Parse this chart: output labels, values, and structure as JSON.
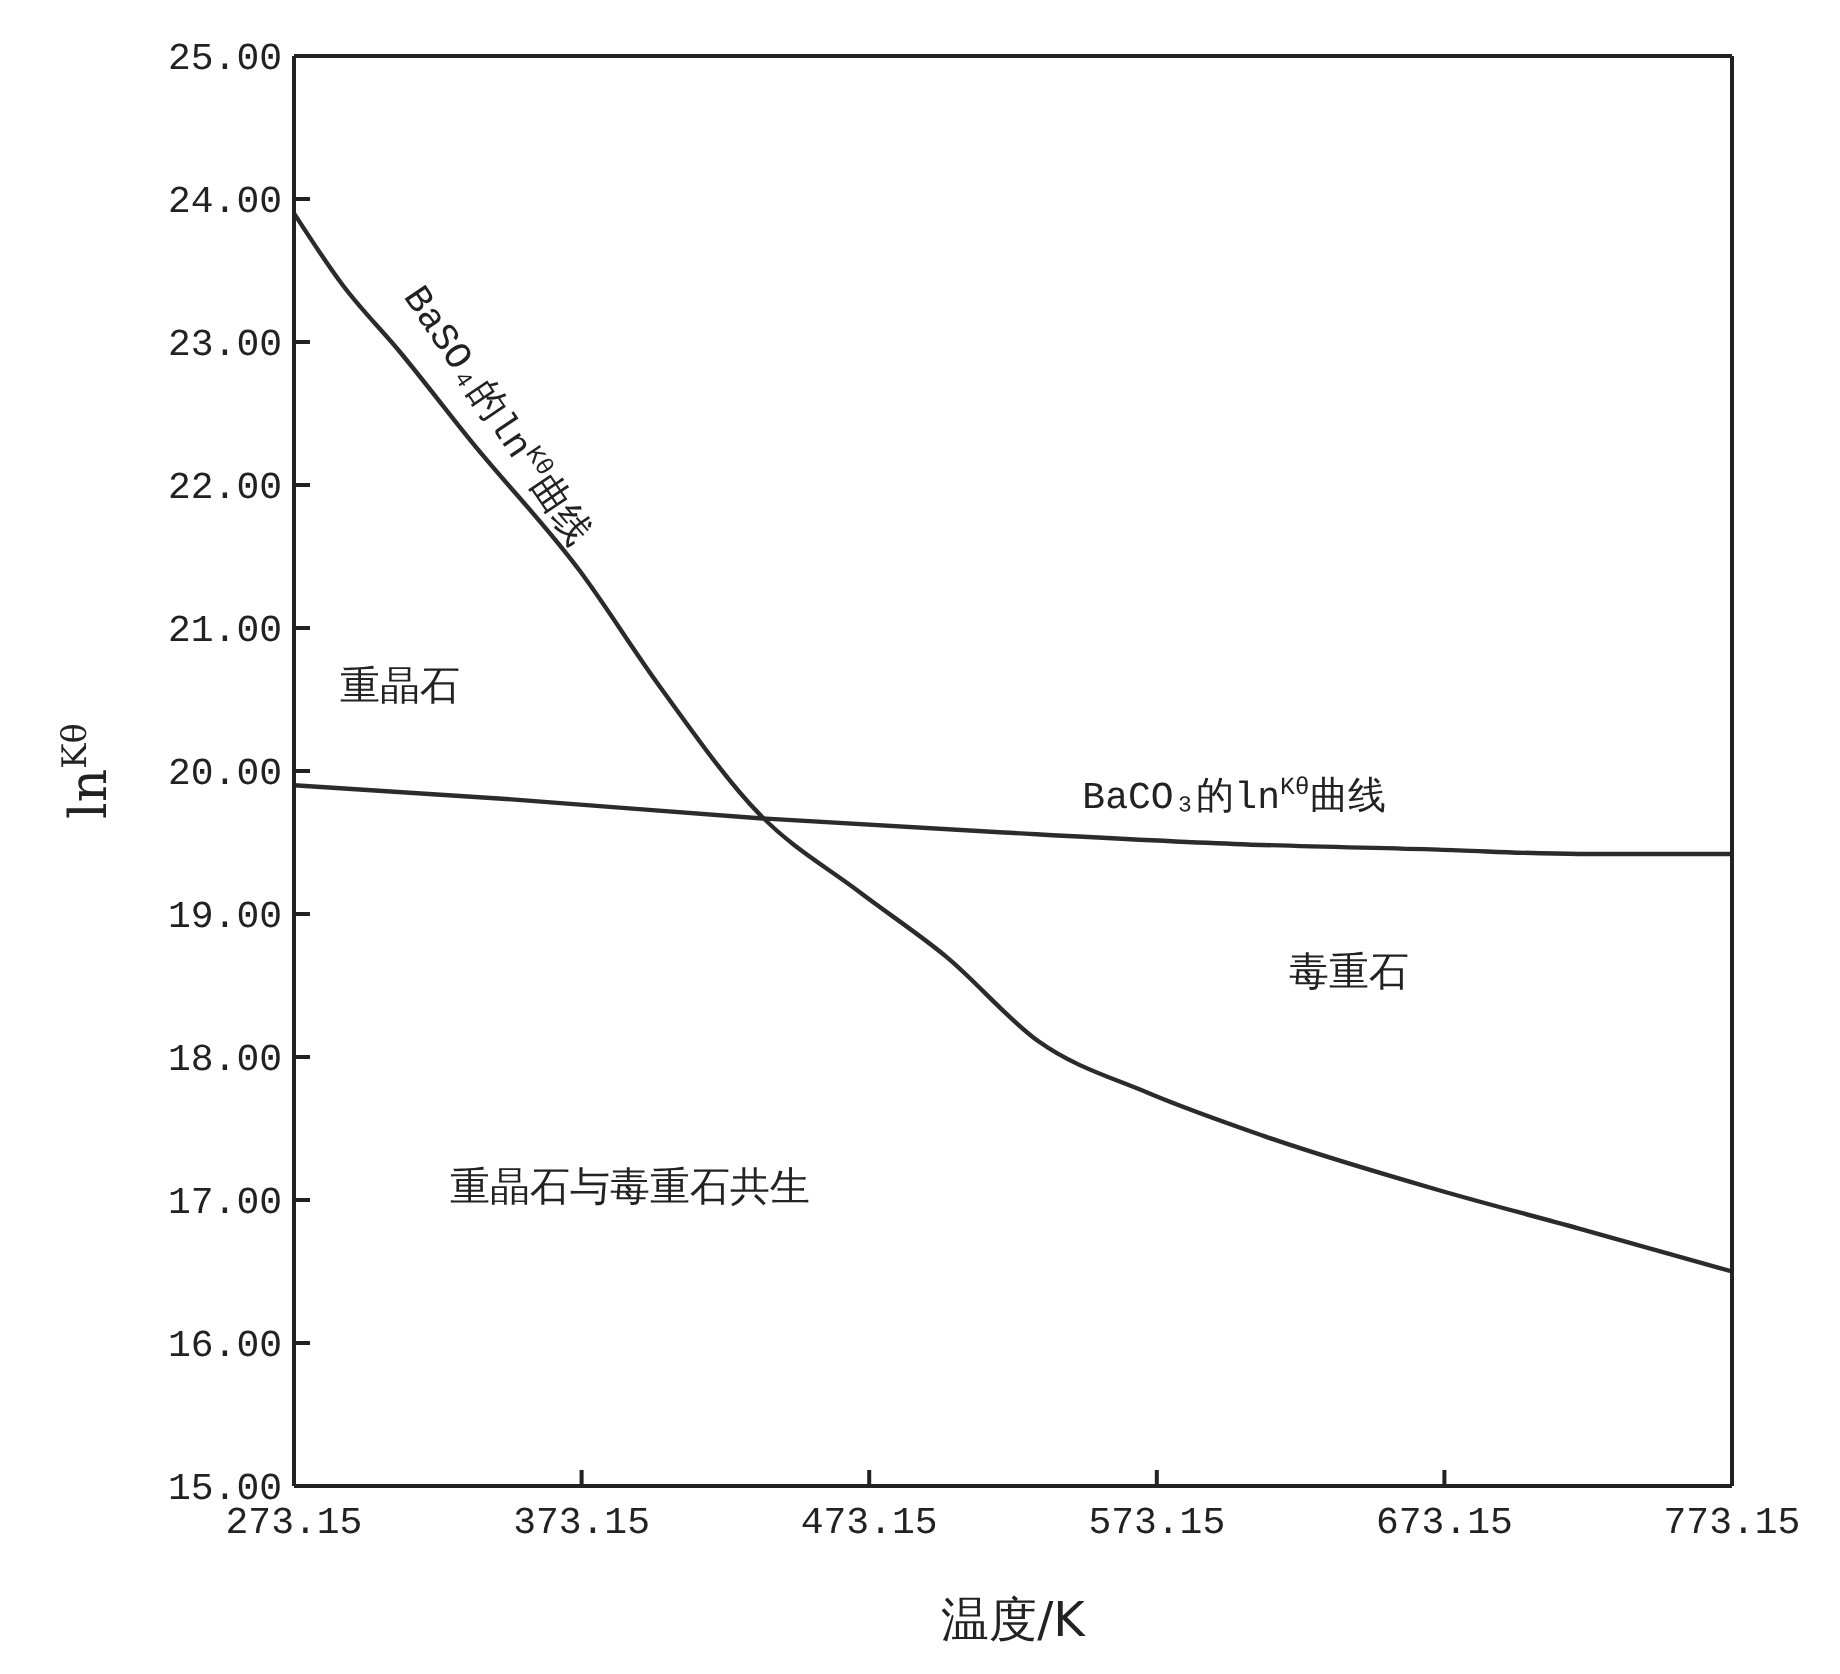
{
  "chart_data": {
    "type": "line",
    "xlabel": "温度/K",
    "ylabel": "ln$^{Kθ}$",
    "xlim": [
      273.15,
      773.15
    ],
    "xticks": [
      273.15,
      373.15,
      473.15,
      573.15,
      673.15,
      773.15
    ],
    "ylim": [
      15,
      25
    ],
    "yticks": [
      {
        "value": 15,
        "label": "15.00"
      },
      {
        "value": 16,
        "label": "16.00"
      },
      {
        "value": 17,
        "label": "17.00"
      },
      {
        "value": 18,
        "label": "18.00"
      },
      {
        "value": 19,
        "label": "19.00"
      },
      {
        "value": 20,
        "label": "20.00"
      },
      {
        "value": 21,
        "label": "21.00"
      },
      {
        "value": 22,
        "label": "22.00"
      },
      {
        "value": 23,
        "label": "23.00"
      },
      {
        "value": 24,
        "label": "24.00"
      },
      {
        "value": 25,
        "label": "25.00"
      }
    ],
    "marker": "none",
    "line_style": "solid",
    "series": [
      {
        "color": "#2b2b2b",
        "x": [
          273.15,
          290,
          310,
          335,
          372.5,
          400,
          434.9,
          470,
          500,
          532,
          570,
          610,
          671,
          720,
          773.15
        ],
        "values": [
          23.9,
          23.4,
          22.93,
          22.3,
          21.4,
          20.6,
          19.7,
          19.15,
          18.7,
          18.11,
          17.75,
          17.45,
          17.07,
          16.8,
          16.5
        ]
      },
      {
        "color": "#2b2b2b",
        "x": [
          273.15,
          350,
          434.9,
          520,
          600,
          671,
          720,
          773.15
        ],
        "values": [
          19.9,
          19.8,
          19.67,
          19.57,
          19.49,
          19.45,
          19.42,
          19.42
        ]
      }
    ],
    "annotations": [
      {
        "text": "BaSO₄的ln$^{Kθ}$曲线",
        "x": 335,
        "y": 22.3
      },
      {
        "text": "BaCO₃的ln$^{Kθ}$曲线",
        "x": 600,
        "y": 19.49
      },
      "重晶石",
      "毒重石",
      "重晶石与毒重石共生"
    ]
  }
}
